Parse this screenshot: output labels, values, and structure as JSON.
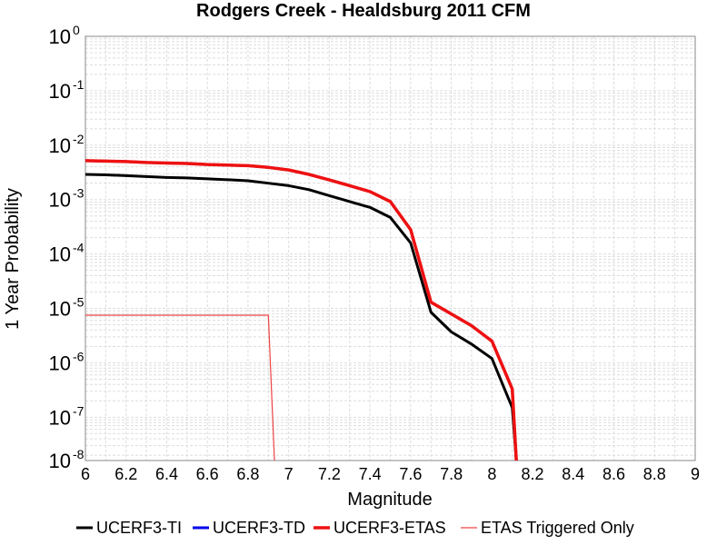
{
  "chart_data": {
    "type": "line",
    "title": "Rodgers Creek - Healdsburg 2011 CFM",
    "xlabel": "Magnitude",
    "ylabel": "1 Year Probability",
    "xlim": [
      6,
      9
    ],
    "ylim": [
      1.6e-08,
      1
    ],
    "yscale": "log",
    "grid": true,
    "legend_position": "bottom",
    "x_ticks": [
      "6",
      "6.2",
      "6.4",
      "6.6",
      "6.8",
      "7",
      "7.2",
      "7.4",
      "7.6",
      "7.8",
      "8",
      "8.2",
      "8.4",
      "8.6",
      "8.8",
      "9"
    ],
    "y_ticks": [
      {
        "base": "10",
        "exp": "0"
      },
      {
        "base": "10",
        "exp": "-1"
      },
      {
        "base": "10",
        "exp": "-2"
      },
      {
        "base": "10",
        "exp": "-3"
      },
      {
        "base": "10",
        "exp": "-4"
      },
      {
        "base": "10",
        "exp": "-5"
      },
      {
        "base": "10",
        "exp": "-6"
      },
      {
        "base": "10",
        "exp": "-7"
      },
      {
        "base": "10",
        "exp": "-8"
      }
    ],
    "series": [
      {
        "name": "UCERF3-TI",
        "color": "#000000",
        "width": 3,
        "x": [
          6.0,
          6.1,
          6.2,
          6.3,
          6.4,
          6.5,
          6.6,
          6.7,
          6.8,
          6.9,
          7.0,
          7.1,
          7.2,
          7.3,
          7.4,
          7.5,
          7.6,
          7.7,
          7.8,
          7.9,
          8.0,
          8.1,
          8.12
        ],
        "y": [
          0.0029,
          0.00285,
          0.00275,
          0.00265,
          0.00255,
          0.0025,
          0.0024,
          0.00232,
          0.00222,
          0.002,
          0.0018,
          0.00152,
          0.00118,
          0.00092,
          0.00072,
          0.00047,
          0.00016,
          8.5e-06,
          3.7e-06,
          2.2e-06,
          1.2e-06,
          1.5e-07,
          1.6e-08
        ]
      },
      {
        "name": "UCERF3-TD",
        "color": "#0000ee",
        "width": 3,
        "x": [
          6.0,
          6.1,
          6.2,
          6.3,
          6.4,
          6.5,
          6.6,
          6.7,
          6.8,
          6.9,
          7.0,
          7.1,
          7.2,
          7.3,
          7.4,
          7.5,
          7.6,
          7.7,
          7.8,
          7.9,
          8.0,
          8.1,
          8.12
        ],
        "y": [
          0.0052,
          0.0051,
          0.005,
          0.0048,
          0.0047,
          0.0046,
          0.0044,
          0.0043,
          0.0042,
          0.0039,
          0.0035,
          0.0029,
          0.0023,
          0.0018,
          0.0014,
          0.00092,
          0.00028,
          1.3e-05,
          7.9e-06,
          4.8e-06,
          2.5e-06,
          3.3e-07,
          1.6e-08
        ]
      },
      {
        "name": "UCERF3-ETAS",
        "color": "#ee1111",
        "width": 3.5,
        "x": [
          6.0,
          6.1,
          6.2,
          6.3,
          6.4,
          6.5,
          6.6,
          6.7,
          6.8,
          6.9,
          7.0,
          7.1,
          7.2,
          7.3,
          7.4,
          7.5,
          7.6,
          7.7,
          7.8,
          7.9,
          8.0,
          8.1,
          8.12
        ],
        "y": [
          0.0052,
          0.0051,
          0.005,
          0.0048,
          0.0047,
          0.0046,
          0.0044,
          0.0043,
          0.0042,
          0.0039,
          0.0035,
          0.0029,
          0.0023,
          0.0018,
          0.0014,
          0.00092,
          0.00028,
          1.3e-05,
          7.9e-06,
          4.8e-06,
          2.5e-06,
          3.3e-07,
          1.6e-08
        ]
      },
      {
        "name": "ETAS Triggered Only",
        "color": "#ee4444",
        "width": 1.2,
        "x": [
          6.0,
          6.9,
          6.93
        ],
        "y": [
          7.5e-06,
          7.5e-06,
          1.6e-08
        ]
      }
    ]
  }
}
